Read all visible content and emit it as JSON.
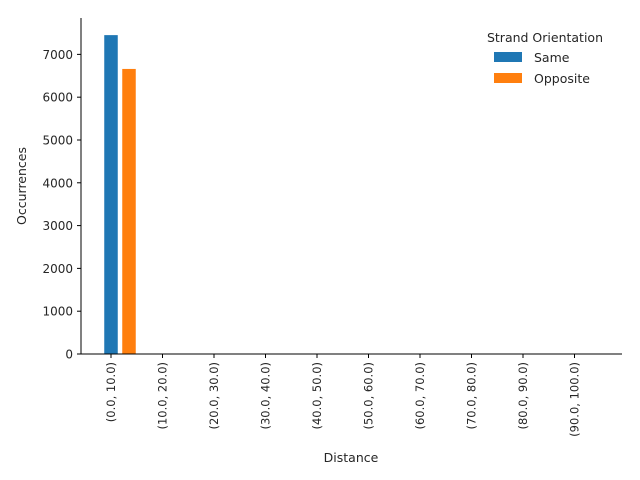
{
  "chart_data": {
    "type": "bar",
    "title": "",
    "xlabel": "Distance",
    "ylabel": "Occurrences",
    "categories": [
      "(0.0, 10.0)",
      "(10.0, 20.0)",
      "(20.0, 30.0)",
      "(30.0, 40.0)",
      "(40.0, 50.0)",
      "(50.0, 60.0)",
      "(60.0, 70.0)",
      "(70.0, 80.0)",
      "(80.0, 90.0)",
      "(90.0, 100.0)"
    ],
    "series": [
      {
        "name": "Same",
        "color": "#1f77b4",
        "values": [
          7450,
          0,
          0,
          0,
          0,
          0,
          0,
          0,
          0,
          0
        ]
      },
      {
        "name": "Opposite",
        "color": "#ff7f0e",
        "values": [
          6660,
          0,
          0,
          0,
          0,
          0,
          0,
          0,
          0,
          0
        ]
      }
    ],
    "ylim": [
      0,
      7850
    ],
    "yticks": [
      0,
      1000,
      2000,
      3000,
      4000,
      5000,
      6000,
      7000
    ],
    "grid": false,
    "legend": {
      "title": "Strand Orientation",
      "placement": "top-right"
    }
  }
}
